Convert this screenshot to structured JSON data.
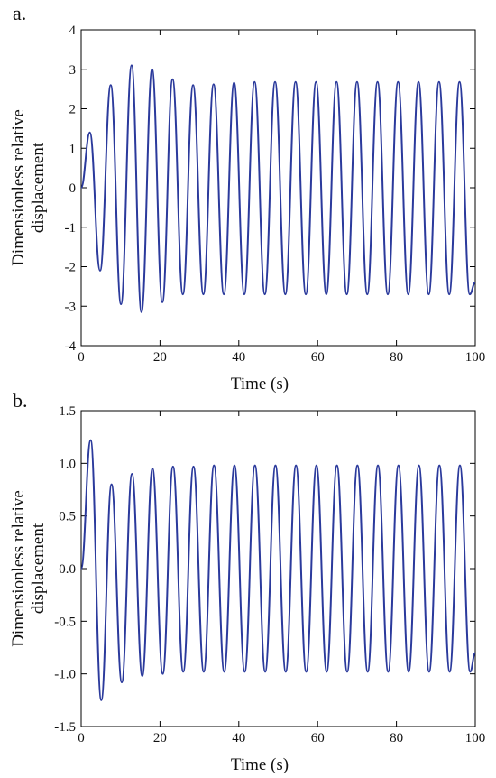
{
  "chart_data": [
    {
      "type": "line",
      "panel_label": "a.",
      "xlabel": "Time (s)",
      "ylabel": [
        "Dimensionless relative",
        "displacement"
      ],
      "xlim": [
        0,
        100
      ],
      "ylim": [
        -4,
        4
      ],
      "xticks": [
        0,
        20,
        40,
        60,
        80,
        100
      ],
      "xtick_labels": [
        "0",
        "20",
        "40",
        "60",
        "80",
        "100"
      ],
      "yticks": [
        -4,
        -3,
        -2,
        -1,
        0,
        1,
        2,
        3,
        4
      ],
      "ytick_labels": [
        "-4",
        "-3",
        "-2",
        "-1",
        "0",
        "1",
        "2",
        "3",
        "4"
      ],
      "grid": false,
      "legend": "none",
      "color": "#2b3a9c",
      "series": [
        {
          "x": [
            0,
            2.2,
            4.8,
            7.5,
            10.1,
            12.8,
            15.3,
            18.0,
            20.6,
            23.2,
            25.8,
            28.4,
            31.0,
            33.6,
            36.2,
            38.8,
            41.4,
            44.0,
            46.6,
            49.2,
            51.8,
            54.4,
            57.0,
            59.6,
            62.2,
            64.8,
            67.4,
            70.0,
            72.6,
            75.2,
            77.8,
            80.4,
            83.0,
            85.6,
            88.2,
            90.8,
            93.4,
            96.0,
            98.6,
            100
          ],
          "y": [
            0,
            1.4,
            -2.1,
            2.6,
            -2.95,
            3.1,
            -3.15,
            3.0,
            -2.9,
            2.75,
            -2.7,
            2.6,
            -2.7,
            2.62,
            -2.7,
            2.66,
            -2.7,
            2.68,
            -2.7,
            2.68,
            -2.7,
            2.68,
            -2.7,
            2.68,
            -2.7,
            2.68,
            -2.7,
            2.68,
            -2.7,
            2.68,
            -2.7,
            2.68,
            -2.7,
            2.68,
            -2.7,
            2.68,
            -2.7,
            2.68,
            -2.7,
            -2.4
          ]
        }
      ]
    },
    {
      "type": "line",
      "panel_label": "b.",
      "xlabel": "Time (s)",
      "ylabel": [
        "Dimensionless relative",
        "displacement"
      ],
      "xlim": [
        0,
        100
      ],
      "ylim": [
        -1.5,
        1.5
      ],
      "xticks": [
        0,
        20,
        40,
        60,
        80,
        100
      ],
      "xtick_labels": [
        "0",
        "20",
        "40",
        "60",
        "80",
        "100"
      ],
      "yticks": [
        -1.5,
        -1.0,
        -0.5,
        0.0,
        0.5,
        1.0,
        1.5
      ],
      "ytick_labels": [
        "-1.5",
        "-1.0",
        "-0.5",
        "0.0",
        "0.5",
        "1.0",
        "1.5"
      ],
      "grid": false,
      "legend": "none",
      "color": "#2b3a9c",
      "series": [
        {
          "x": [
            0,
            2.4,
            5.1,
            7.7,
            10.3,
            12.9,
            15.5,
            18.1,
            20.7,
            23.3,
            25.9,
            28.5,
            31.1,
            33.7,
            36.3,
            38.9,
            41.5,
            44.1,
            46.7,
            49.3,
            51.9,
            54.5,
            57.1,
            59.7,
            62.3,
            64.9,
            67.5,
            70.1,
            72.7,
            75.3,
            77.9,
            80.5,
            83.1,
            85.7,
            88.3,
            90.9,
            93.5,
            96.1,
            98.7,
            100
          ],
          "y": [
            0,
            1.22,
            -1.25,
            0.8,
            -1.08,
            0.9,
            -1.02,
            0.95,
            -1.0,
            0.97,
            -0.98,
            0.97,
            -0.98,
            0.98,
            -0.98,
            0.98,
            -0.98,
            0.98,
            -0.98,
            0.98,
            -0.98,
            0.98,
            -0.98,
            0.98,
            -0.98,
            0.98,
            -0.98,
            0.98,
            -0.98,
            0.98,
            -0.98,
            0.98,
            -0.98,
            0.98,
            -0.98,
            0.98,
            -0.98,
            0.98,
            -0.98,
            -0.8
          ]
        }
      ]
    }
  ]
}
